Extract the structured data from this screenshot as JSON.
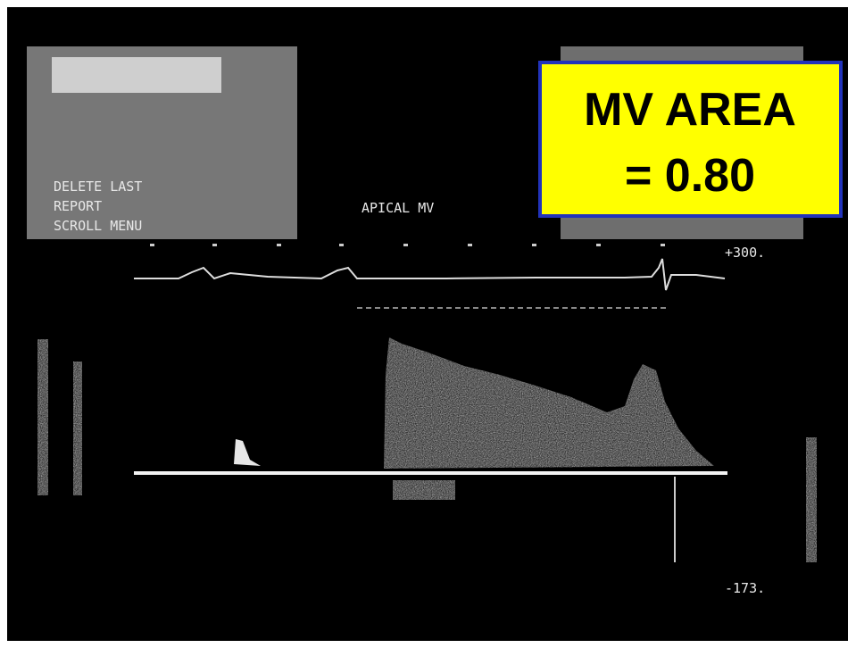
{
  "screen": {
    "menu": [
      "DELETE LAST",
      "REPORT",
      "SCROLL MENU"
    ],
    "view_label": "APICAL MV",
    "scale_top": "+300.",
    "scale_bottom": "-173.",
    "annotation": {
      "line1": "MV AREA",
      "line2": "= 0.80"
    }
  }
}
